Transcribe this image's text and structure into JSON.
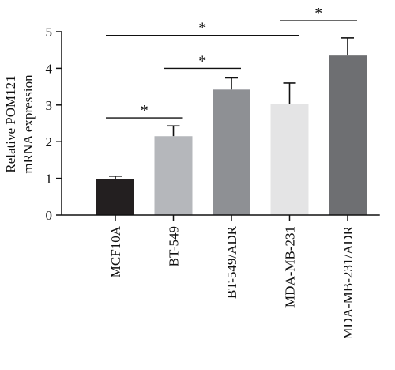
{
  "chart_data": {
    "type": "bar",
    "title": "",
    "ylabel_lines": [
      "Relative POM121",
      "mRNA expression"
    ],
    "xlabel": "",
    "ylim": [
      0,
      5
    ],
    "yticks": [
      0,
      1,
      2,
      3,
      4,
      5
    ],
    "grid": false,
    "legend": "none",
    "categories": [
      "MCF10A",
      "BT-549",
      "BT-549/ADR",
      "MDA-MB-231",
      "MDA-MB-231/ADR"
    ],
    "values": [
      0.98,
      2.15,
      3.42,
      3.02,
      4.35
    ],
    "error_upper": [
      0.08,
      0.28,
      0.32,
      0.58,
      0.48
    ],
    "colors": [
      "#231f20",
      "#b5b7bb",
      "#8e9094",
      "#e4e4e5",
      "#6e6f72"
    ],
    "significance": [
      {
        "from": 0,
        "to": 1,
        "y": 2.65,
        "label": "*"
      },
      {
        "from": 1,
        "to": 2,
        "y": 4.0,
        "label": "*"
      },
      {
        "from": 0,
        "to": 3,
        "y": 4.9,
        "label": "*"
      },
      {
        "from": 3,
        "to": 4,
        "y": 5.3,
        "label": "*"
      }
    ]
  }
}
